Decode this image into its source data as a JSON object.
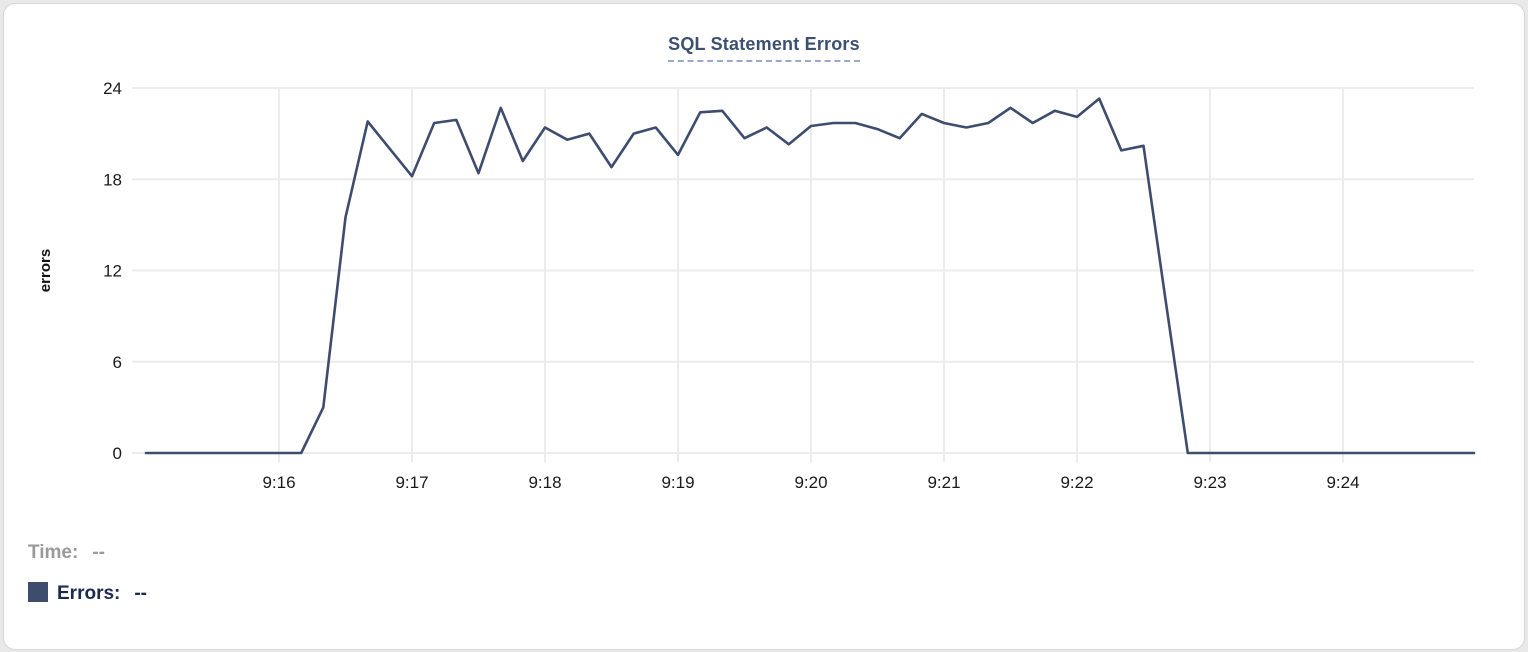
{
  "panel": {
    "tooltip": {
      "time_label": "Time:",
      "time_value": "--",
      "errors_label": "Errors:",
      "errors_value": "--"
    }
  },
  "chart_data": {
    "type": "line",
    "title": "SQL Statement Errors",
    "xlabel": "",
    "ylabel": "errors",
    "ylim": [
      0,
      24
    ],
    "yticks": [
      0,
      6,
      12,
      18,
      24
    ],
    "xtick_labels": [
      "9:16",
      "9:17",
      "9:18",
      "9:19",
      "9:20",
      "9:21",
      "9:22",
      "9:23",
      "9:24"
    ],
    "x_start_time": "9:15:00",
    "x_end_time": "9:25:00",
    "sample_interval_seconds": 10,
    "grid": true,
    "legend_position": "bottom-left",
    "series": [
      {
        "name": "Errors",
        "color": "#3e4d6e",
        "values": [
          0,
          0,
          0,
          0,
          0,
          0,
          0,
          0,
          3,
          15.5,
          21.8,
          20,
          18.2,
          21.7,
          21.9,
          18.4,
          22.7,
          19.2,
          21.4,
          20.6,
          21,
          18.8,
          21,
          21.4,
          19.6,
          22.4,
          22.5,
          20.7,
          21.4,
          20.3,
          21.5,
          21.7,
          21.7,
          21.3,
          20.7,
          22.3,
          21.7,
          21.4,
          21.7,
          22.7,
          21.7,
          22.5,
          22.1,
          23.3,
          19.9,
          20.2,
          10,
          0,
          0,
          0,
          0,
          0,
          0,
          0,
          0,
          0,
          0,
          0,
          0,
          0,
          0
        ]
      }
    ],
    "colors": {
      "grid": "#ececec",
      "axis_text": "#1a1a1a",
      "title": "#3c5070",
      "title_underline": "#9aa9c7",
      "muted_text": "#9a9a9a",
      "legend_text": "#1c2a4e"
    }
  }
}
